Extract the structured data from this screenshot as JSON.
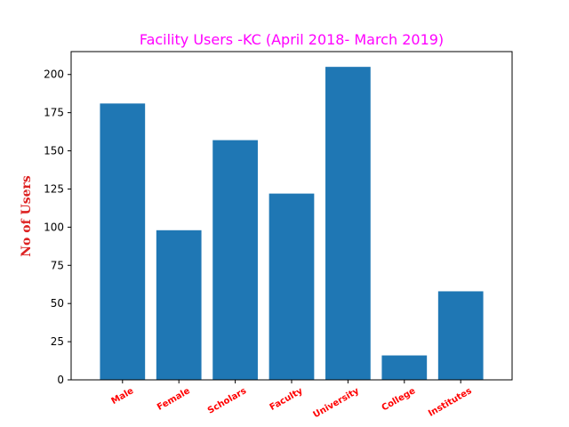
{
  "chart_data": {
    "type": "bar",
    "title": "Facility Users -KC (April 2018- March 2019)",
    "xlabel": "",
    "ylabel": "No of Users",
    "categories": [
      "Male",
      "Female",
      "Scholars",
      "Faculty",
      "University",
      "College",
      "Institutes"
    ],
    "values": [
      181,
      98,
      157,
      122,
      205,
      16,
      58
    ],
    "ylim": [
      0,
      215
    ],
    "yticks": [
      0,
      25,
      50,
      75,
      100,
      125,
      150,
      175,
      200
    ],
    "grid": false,
    "legend": "none",
    "colors": {
      "bar": "#1f77b4",
      "title": "#ff00ff",
      "ylabel": "#dd2222",
      "xticklabels": "#ff0000"
    }
  }
}
